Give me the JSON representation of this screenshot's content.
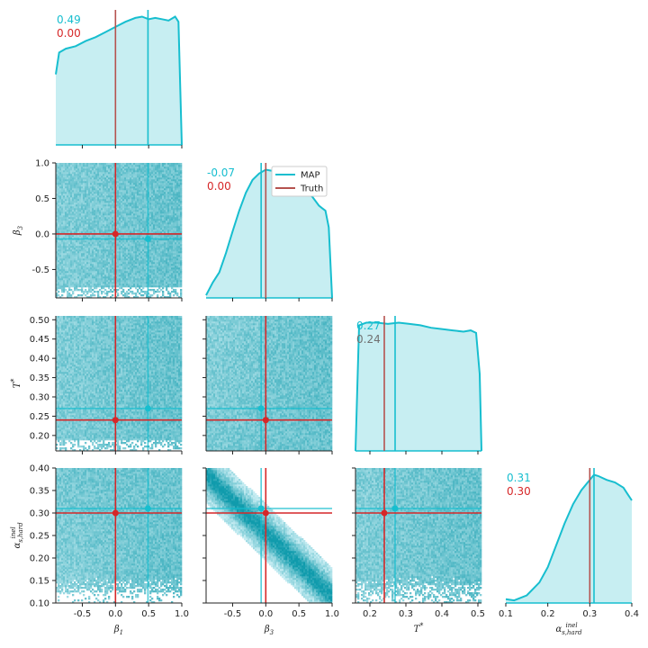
{
  "colors": {
    "map": "#17becf",
    "truth": "#d62728",
    "truth_line": "#b5524f",
    "fill": "#c7eef2",
    "gray_text": "#707070"
  },
  "legend": {
    "map_label": "MAP",
    "truth_label": "Truth"
  },
  "chart_data": {
    "type": "corner",
    "parameters": [
      {
        "key": "beta1",
        "label": "β₁",
        "range": [
          -0.9,
          1.0
        ],
        "map": 0.49,
        "truth": 0.0,
        "map_text": "0.49",
        "truth_text": "0.00",
        "ticks": [
          "-0.5",
          "0.0",
          "0.5",
          "1.0"
        ]
      },
      {
        "key": "beta3",
        "label": "β₃",
        "range": [
          -0.9,
          1.0
        ],
        "map": -0.07,
        "truth": 0.0,
        "map_text": "-0.07",
        "truth_text": "0.00",
        "ticks": [
          "-0.5",
          "0.0",
          "0.5",
          "1.0"
        ]
      },
      {
        "key": "T",
        "label": "T*",
        "range": [
          0.16,
          0.51
        ],
        "map": 0.27,
        "truth": 0.24,
        "map_text": "0.27",
        "truth_text": "0.24",
        "ticks": [
          "0.2",
          "0.3",
          "0.4",
          "0.5"
        ]
      },
      {
        "key": "alpha",
        "label": "α inel s,hard",
        "range": [
          0.1,
          0.4
        ],
        "map": 0.31,
        "truth": 0.3,
        "map_text": "0.31",
        "truth_text": "0.30",
        "ticks": [
          "0.1",
          "0.2",
          "0.3",
          "0.4"
        ]
      }
    ],
    "row_ticks": [
      [],
      [
        "1.0",
        "0.5",
        "0.0",
        "-0.5"
      ],
      [
        "0.50",
        "0.45",
        "0.40",
        "0.35",
        "0.30",
        "0.25",
        "0.20"
      ],
      [
        "0.40",
        "0.35",
        "0.30",
        "0.25",
        "0.20",
        "0.15",
        "0.10"
      ]
    ],
    "marginals": [
      {
        "x": [
          -0.9,
          -0.85,
          -0.75,
          -0.6,
          -0.45,
          -0.3,
          -0.15,
          0.0,
          0.15,
          0.3,
          0.4,
          0.5,
          0.6,
          0.7,
          0.8,
          0.9,
          0.95,
          1.0
        ],
        "y": [
          0.55,
          0.72,
          0.75,
          0.77,
          0.81,
          0.84,
          0.88,
          0.92,
          0.96,
          0.99,
          1.0,
          0.98,
          0.99,
          0.98,
          0.97,
          1.0,
          0.96,
          0.0
        ]
      },
      {
        "x": [
          -0.9,
          -0.8,
          -0.7,
          -0.6,
          -0.5,
          -0.4,
          -0.3,
          -0.2,
          -0.1,
          0.0,
          0.1,
          0.2,
          0.3,
          0.4,
          0.5,
          0.6,
          0.7,
          0.8,
          0.85,
          0.9,
          0.95,
          1.0
        ],
        "y": [
          0.02,
          0.12,
          0.2,
          0.35,
          0.52,
          0.68,
          0.82,
          0.92,
          0.97,
          1.0,
          0.99,
          0.97,
          0.93,
          0.9,
          0.86,
          0.83,
          0.79,
          0.72,
          0.7,
          0.68,
          0.55,
          0.0
        ]
      },
      {
        "x": [
          0.16,
          0.17,
          0.19,
          0.22,
          0.25,
          0.28,
          0.31,
          0.34,
          0.37,
          0.4,
          0.43,
          0.46,
          0.48,
          0.495,
          0.505,
          0.51
        ],
        "y": [
          0.0,
          0.98,
          1.0,
          1.0,
          0.99,
          1.0,
          0.99,
          0.98,
          0.96,
          0.95,
          0.94,
          0.93,
          0.94,
          0.92,
          0.6,
          0.0
        ]
      },
      {
        "x": [
          0.1,
          0.12,
          0.15,
          0.18,
          0.2,
          0.22,
          0.24,
          0.26,
          0.28,
          0.3,
          0.31,
          0.32,
          0.34,
          0.36,
          0.38,
          0.39,
          0.4
        ],
        "y": [
          0.03,
          0.02,
          0.06,
          0.16,
          0.28,
          0.45,
          0.62,
          0.77,
          0.88,
          0.96,
          1.0,
          0.99,
          0.96,
          0.94,
          0.9,
          0.85,
          0.8
        ]
      }
    ],
    "correlations": {
      "1_0": 0.0,
      "2_0": 0.0,
      "2_1": 0.2,
      "3_0": -0.35,
      "3_1": -0.9,
      "3_2": 0.05
    },
    "legend_position": "upper-right of beta3 marginal"
  }
}
